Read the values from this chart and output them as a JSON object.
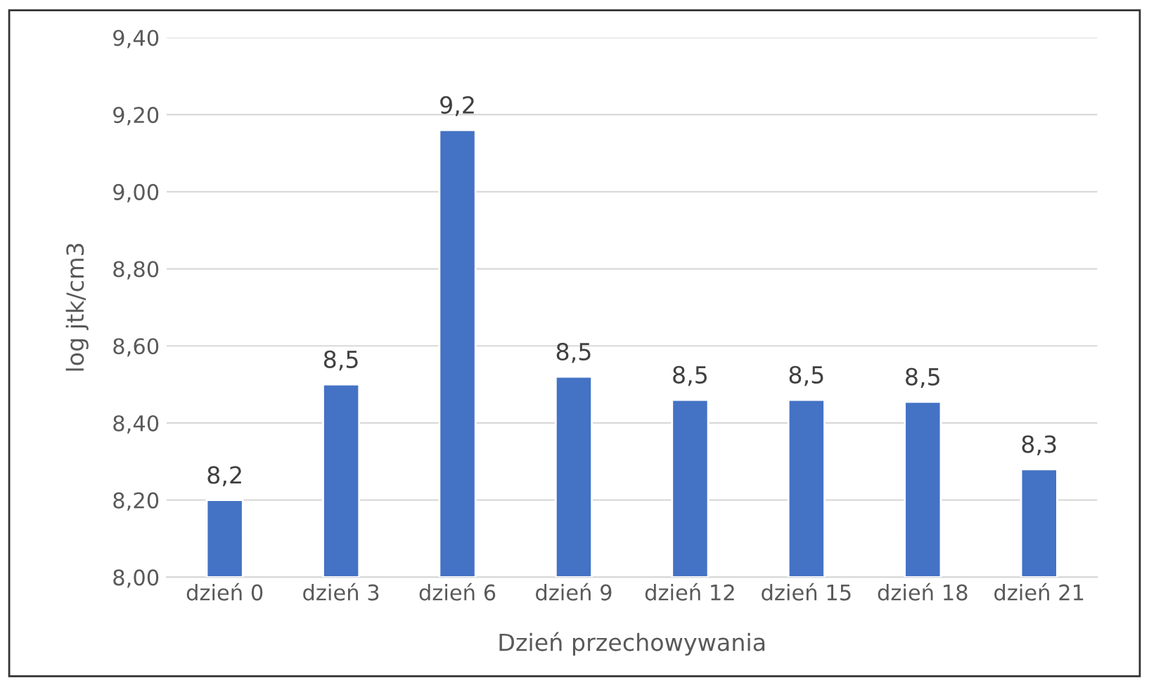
{
  "chart_data": {
    "type": "bar",
    "xlabel": "Dzień przechowywania",
    "ylabel": "log jtk/cm3",
    "categories": [
      "dzień 0",
      "dzień 3",
      "dzień 6",
      "dzień 9",
      "dzień 12",
      "dzień 15",
      "dzień 18",
      "dzień 21"
    ],
    "values": [
      8.2,
      8.5,
      9.16,
      8.52,
      8.46,
      8.46,
      8.455,
      8.28
    ],
    "value_labels": [
      "8,2",
      "8,5",
      "9,2",
      "8,5",
      "8,5",
      "8,5",
      "8,5",
      "8,3"
    ],
    "color": "#4472c4",
    "ylim": [
      8.0,
      9.4
    ],
    "yticks": [
      {
        "value": 8.0,
        "label": "8,00"
      },
      {
        "value": 8.2,
        "label": "8,20"
      },
      {
        "value": 8.4,
        "label": "8,40"
      },
      {
        "value": 8.6,
        "label": "8,60"
      },
      {
        "value": 8.8,
        "label": "8,80"
      },
      {
        "value": 9.0,
        "label": "9,00"
      },
      {
        "value": 9.2,
        "label": "9,20"
      },
      {
        "value": 9.4,
        "label": "9,40"
      }
    ],
    "grid": "y"
  }
}
